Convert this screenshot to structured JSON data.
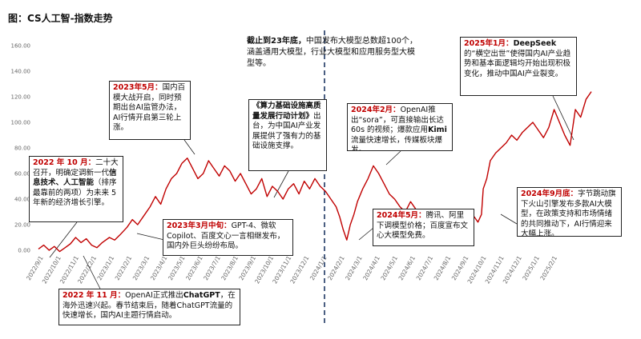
{
  "page_title": "图：CS人工智-指数走势",
  "chart_data": {
    "type": "line",
    "title": "",
    "xlabel": "",
    "ylabel": "",
    "ylim": [
      0,
      160
    ],
    "yticks": [
      "0.00",
      "20.00",
      "40.00",
      "60.00",
      "80.00",
      "100.00",
      "120.00",
      "140.00",
      "160.00"
    ],
    "xticks": [
      "2022/9/1",
      "2022/10/1",
      "2022/11/1",
      "2022/12/1",
      "2023/1/1",
      "2023/2/1",
      "2023/3/1",
      "2023/4/1",
      "2023/5/1",
      "2023/6/1",
      "2023/7/1",
      "2023/8/1",
      "2023/9/1",
      "2023/10/1",
      "2023/11/1",
      "2023/12/1",
      "2024/1/1",
      "2024/2/1",
      "2024/3/1",
      "2024/4/1",
      "2024/5/1",
      "2024/6/1",
      "2024/7/1",
      "2024/8/1",
      "2024/9/1",
      "2024/10/1",
      "2024/11/1",
      "2024/12/1",
      "2025/1/1",
      "2025/2/1"
    ],
    "grid": false,
    "series": [
      {
        "color": "#c00000",
        "x": [
          0,
          0.3,
          0.6,
          0.9,
          1.2,
          1.5,
          1.8,
          2.1,
          2.4,
          2.7,
          3.0,
          3.3,
          3.6,
          4.0,
          4.3,
          4.6,
          5.0,
          5.3,
          5.6,
          6.0,
          6.3,
          6.6,
          6.9,
          7.2,
          7.5,
          7.8,
          8.1,
          8.4,
          8.7,
          9.0,
          9.3,
          9.6,
          9.9,
          10.2,
          10.5,
          10.8,
          11.1,
          11.4,
          11.7,
          12.0,
          12.3,
          12.6,
          12.9,
          13.2,
          13.5,
          13.8,
          14.1,
          14.4,
          14.7,
          15.0,
          15.3,
          15.6,
          15.9,
          16.2,
          16.5,
          16.8,
          17.0,
          17.2,
          17.4,
          17.6,
          17.8,
          18.0,
          18.3,
          18.6,
          18.9,
          19.2,
          19.5,
          19.8,
          20.1,
          20.4,
          20.7,
          21.0,
          21.3,
          21.6,
          21.9,
          22.2,
          22.5,
          22.8,
          23.1,
          23.4,
          23.7,
          24.0,
          24.3,
          24.6,
          24.8,
          25.0,
          25.1,
          25.2,
          25.3,
          25.5,
          25.8,
          26.1,
          26.4,
          26.7,
          27.0,
          27.3,
          27.6,
          27.9,
          28.2,
          28.5,
          28.8,
          29.1,
          29.4,
          29.7,
          30.0,
          30.3,
          30.6,
          30.9,
          31.2
        ],
        "y": [
          1,
          4,
          0,
          3,
          -1,
          2,
          5,
          10,
          6,
          9,
          4,
          2,
          6,
          10,
          8,
          12,
          18,
          24,
          20,
          28,
          34,
          42,
          36,
          48,
          56,
          60,
          68,
          72,
          64,
          56,
          60,
          70,
          64,
          58,
          66,
          62,
          54,
          60,
          52,
          44,
          48,
          56,
          42,
          50,
          46,
          40,
          48,
          52,
          44,
          54,
          48,
          56,
          50,
          46,
          40,
          34,
          26,
          16,
          8,
          20,
          28,
          38,
          48,
          56,
          66,
          60,
          52,
          44,
          40,
          34,
          30,
          38,
          32,
          28,
          24,
          30,
          26,
          22,
          28,
          24,
          20,
          24,
          30,
          26,
          22,
          28,
          48,
          52,
          56,
          70,
          76,
          80,
          84,
          90,
          86,
          92,
          96,
          100,
          94,
          88,
          96,
          110,
          100,
          90,
          82,
          110,
          104,
          118,
          124
        ]
      }
    ],
    "annotations": [
      {
        "id": "a2022-10",
        "title": "2022 年 10 月：",
        "text_before": "二十大召开，明确定调新一代",
        "bold": "信息技术、人工智能",
        "text_after": "（排序最靠前的两项）为未来 5 年新的经济增长引擎。"
      },
      {
        "id": "a2022-11",
        "title": "2022 年 11 月：",
        "text_before": "OpenAI正式推出",
        "bold": "ChatGPT",
        "text_after": "，在海外迅速兴起。春节结束后，随着ChatGPT流量的快速增长，国内AI主题行情启动。"
      },
      {
        "id": "a2023-3",
        "title": "2023年3月中旬：",
        "text_before": "GPT-4、微软Copilot、百度文心一言相继发布，国内外巨头纷纷布局。",
        "bold": "",
        "text_after": ""
      },
      {
        "id": "a2023-5",
        "title": "2023年5月：",
        "text_before": "国内百模大战开启，同时预期出台AI监管办法，AI行情开启第三轮上涨。",
        "bold": "",
        "text_after": ""
      },
      {
        "id": "a2023-policy",
        "title": "",
        "text_before": "",
        "bold": "《算力基础设施高质量发展行动计划》",
        "text_after": "出台，为中国AI产业发展提供了强有力的基础设施支撑。"
      },
      {
        "id": "a2023-end",
        "title": "",
        "text_before": "",
        "bold": "截止到23年底，",
        "text_after": "中国发布大模型总数超100个，涵盖通用大模型，行业大模型和应用服务型大模型等。"
      },
      {
        "id": "a2024-2",
        "title": "2024年2月：",
        "text_before": "OpenAI推出“sora”，可直接输出长达 60s 的视频；爆款应用",
        "bold": "Kimi",
        "text_after": "流量快速增长，传媒板块爆发。"
      },
      {
        "id": "a2024-5",
        "title": "2024年5月：",
        "text_before": "腾讯、阿里下调模型价格；百度宣布文心大模型免费。",
        "bold": "",
        "text_after": ""
      },
      {
        "id": "a2024-9",
        "title": "2024年9月底：",
        "text_before": "字节跳动旗下火山引擎发布多款AI大模型，在政策支持和市场情绪的共同推动下，AI行情迎来大幅上涨。",
        "bold": "",
        "text_after": ""
      },
      {
        "id": "a2025-1",
        "title": "2025年1月：",
        "text_before": "",
        "bold": "DeepSeek",
        "text_after": "的“横空出世”使得国内AI产业趋势和基本面逻辑均开始出现积极变化，推动中国AI产业裂变。"
      }
    ]
  }
}
